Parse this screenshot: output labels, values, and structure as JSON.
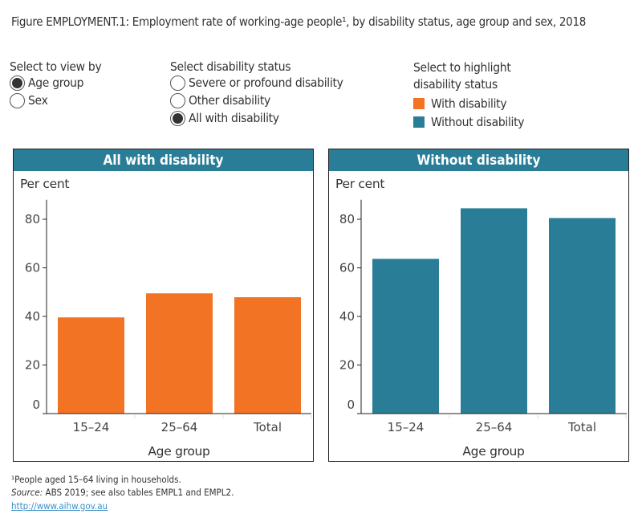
{
  "title": "Figure EMPLOYMENT.1: Employment rate of working-age people¹, by disability status, age group and sex, 2018",
  "controls": {
    "view_by": {
      "label": "Select to view by",
      "options": [
        {
          "label": "Age group",
          "selected": true
        },
        {
          "label": "Sex",
          "selected": false
        }
      ]
    },
    "disability_status": {
      "label": "Select disability status",
      "options": [
        {
          "label": "Severe or profound disability",
          "selected": false
        },
        {
          "label": "Other disability",
          "selected": false
        },
        {
          "label": "All with disability",
          "selected": true
        }
      ]
    },
    "highlight": {
      "label_line1": "Select to highlight",
      "label_line2": "disability status",
      "items": [
        {
          "label": "With disability",
          "color": "#f37324"
        },
        {
          "label": "Without disability",
          "color": "#2a7d96"
        }
      ]
    }
  },
  "chart_data": [
    {
      "type": "bar",
      "title": "All with disability",
      "ylabel": "Per cent",
      "xlabel": "Age group",
      "categories": [
        "15–24",
        "25–64",
        "Total"
      ],
      "values": [
        39.6,
        49.5,
        47.9
      ],
      "ylim": [
        0,
        88
      ],
      "yticks": [
        0,
        20,
        40,
        60,
        80
      ],
      "color": "#f37324",
      "grid": false
    },
    {
      "type": "bar",
      "title": "Without disability",
      "ylabel": "Per cent",
      "xlabel": "Age group",
      "categories": [
        "15–24",
        "25–64",
        "Total"
      ],
      "values": [
        63.7,
        84.5,
        80.5
      ],
      "ylim": [
        0,
        88
      ],
      "yticks": [
        0,
        20,
        40,
        60,
        80
      ],
      "color": "#2a7d96",
      "grid": false
    }
  ],
  "footnotes": {
    "note": "¹People aged 15–64 living in households.",
    "source_label": "Source:",
    "source_text": " ABS 2019; see also tables EMPL1 and EMPL2.",
    "link": "http://www.aihw.gov.au"
  }
}
